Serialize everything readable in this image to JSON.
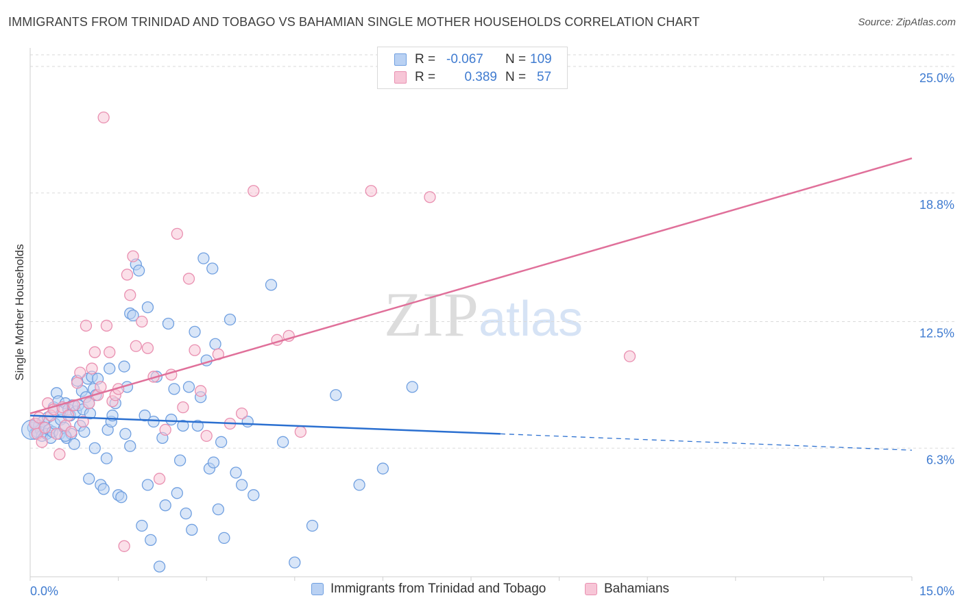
{
  "title": "IMMIGRANTS FROM TRINIDAD AND TOBAGO VS BAHAMIAN SINGLE MOTHER HOUSEHOLDS CORRELATION CHART",
  "source": "Source: ZipAtlas.com",
  "colors": {
    "blue": "#6f9fe0",
    "blue_fill": "#b9d1f3",
    "blue_line": "#2a6fd0",
    "pink": "#e98fb0",
    "pink_fill": "#f7c6d7",
    "pink_line": "#e0709a",
    "axis_label": "#3f7bd0"
  },
  "chart_data": {
    "type": "scatter",
    "title": "IMMIGRANTS FROM TRINIDAD AND TOBAGO VS BAHAMIAN SINGLE MOTHER HOUSEHOLDS CORRELATION CHART",
    "xlabel": "",
    "ylabel": "Single Mother Households",
    "xlim": [
      0,
      15
    ],
    "ylim": [
      0,
      26
    ],
    "x_tick_labels": [
      "0.0%",
      "15.0%"
    ],
    "y_ticks": [
      6.3,
      12.5,
      18.8,
      25.0
    ],
    "y_tick_labels": [
      "6.3%",
      "12.5%",
      "18.8%",
      "25.0%"
    ],
    "grid": "horizontal-dashed",
    "legend_position": "top-center",
    "watermark": "ZIPatlas",
    "legend_stats": [
      {
        "r_label": "R =",
        "r_value": "-0.067",
        "n_label": "N =",
        "n_value": "109"
      },
      {
        "r_label": "R =",
        "r_value": "0.389",
        "n_label": "N =",
        "n_value": "57"
      }
    ],
    "series": [
      {
        "name": "Immigrants from Trinidad and Tobago",
        "color": "#6f9fe0",
        "trend": {
          "x": [
            0,
            8.0,
            15.0
          ],
          "y": [
            7.9,
            7.0,
            6.2
          ],
          "solid_until": 8.0
        },
        "points": [
          [
            0.05,
            7.3
          ],
          [
            0.08,
            7.0
          ],
          [
            0.1,
            7.5
          ],
          [
            0.12,
            7.1
          ],
          [
            0.15,
            7.4
          ],
          [
            0.18,
            7.2
          ],
          [
            0.2,
            6.9
          ],
          [
            0.22,
            7.6
          ],
          [
            0.25,
            7.3
          ],
          [
            0.28,
            7.0
          ],
          [
            0.3,
            7.8
          ],
          [
            0.32,
            7.2
          ],
          [
            0.35,
            6.8
          ],
          [
            0.38,
            7.1
          ],
          [
            0.4,
            8.3
          ],
          [
            0.42,
            7.5
          ],
          [
            0.45,
            9.0
          ],
          [
            0.48,
            8.6
          ],
          [
            0.5,
            7.0
          ],
          [
            0.52,
            7.7
          ],
          [
            0.55,
            8.1
          ],
          [
            0.58,
            7.3
          ],
          [
            0.6,
            8.5
          ],
          [
            0.62,
            6.8
          ],
          [
            0.65,
            8.2
          ],
          [
            0.68,
            7.9
          ],
          [
            0.7,
            7.0
          ],
          [
            0.72,
            8.4
          ],
          [
            0.75,
            6.5
          ],
          [
            0.78,
            8.1
          ],
          [
            0.8,
            9.6
          ],
          [
            0.82,
            8.4
          ],
          [
            0.85,
            7.4
          ],
          [
            0.88,
            9.1
          ],
          [
            0.9,
            8.2
          ],
          [
            0.92,
            7.1
          ],
          [
            0.95,
            8.8
          ],
          [
            0.98,
            9.7
          ],
          [
            1.0,
            8.5
          ],
          [
            1.02,
            8.0
          ],
          [
            1.05,
            9.8
          ],
          [
            1.08,
            9.2
          ],
          [
            1.1,
            6.3
          ],
          [
            1.12,
            8.9
          ],
          [
            1.15,
            9.7
          ],
          [
            1.2,
            4.5
          ],
          [
            1.25,
            4.3
          ],
          [
            1.3,
            5.8
          ],
          [
            1.32,
            7.2
          ],
          [
            1.35,
            10.2
          ],
          [
            1.38,
            7.6
          ],
          [
            1.4,
            7.9
          ],
          [
            1.45,
            8.5
          ],
          [
            1.5,
            4.0
          ],
          [
            1.55,
            3.9
          ],
          [
            1.6,
            10.3
          ],
          [
            1.62,
            7.0
          ],
          [
            1.65,
            9.3
          ],
          [
            1.7,
            12.9
          ],
          [
            1.75,
            12.8
          ],
          [
            1.8,
            15.3
          ],
          [
            1.85,
            15.0
          ],
          [
            1.9,
            2.5
          ],
          [
            1.95,
            7.9
          ],
          [
            2.0,
            4.5
          ],
          [
            2.05,
            1.8
          ],
          [
            2.1,
            7.6
          ],
          [
            2.15,
            9.8
          ],
          [
            2.2,
            0.5
          ],
          [
            2.25,
            6.8
          ],
          [
            2.3,
            3.5
          ],
          [
            2.35,
            12.4
          ],
          [
            2.4,
            7.7
          ],
          [
            2.45,
            9.2
          ],
          [
            2.5,
            4.1
          ],
          [
            2.55,
            5.7
          ],
          [
            2.6,
            7.4
          ],
          [
            2.65,
            3.1
          ],
          [
            2.7,
            9.3
          ],
          [
            2.75,
            2.3
          ],
          [
            2.8,
            12.0
          ],
          [
            2.85,
            7.4
          ],
          [
            2.9,
            8.8
          ],
          [
            2.95,
            15.6
          ],
          [
            3.0,
            10.6
          ],
          [
            3.05,
            5.3
          ],
          [
            3.1,
            15.1
          ],
          [
            3.12,
            5.6
          ],
          [
            3.15,
            11.4
          ],
          [
            3.2,
            3.3
          ],
          [
            3.25,
            6.6
          ],
          [
            3.3,
            1.9
          ],
          [
            3.4,
            12.6
          ],
          [
            3.5,
            5.1
          ],
          [
            3.6,
            4.5
          ],
          [
            3.7,
            7.6
          ],
          [
            3.8,
            4.0
          ],
          [
            4.1,
            14.3
          ],
          [
            4.3,
            6.6
          ],
          [
            4.5,
            0.7
          ],
          [
            4.8,
            2.5
          ],
          [
            5.2,
            8.9
          ],
          [
            5.6,
            4.5
          ],
          [
            6.0,
            5.3
          ],
          [
            6.5,
            9.3
          ],
          [
            2.0,
            13.2
          ],
          [
            1.7,
            6.4
          ],
          [
            0.6,
            6.9
          ],
          [
            1.0,
            4.8
          ]
        ]
      },
      {
        "name": "Bahamians",
        "color": "#e98fb0",
        "trend": {
          "x": [
            0,
            15.0
          ],
          "y": [
            8.0,
            20.5
          ]
        },
        "points": [
          [
            0.08,
            7.5
          ],
          [
            0.12,
            7.0
          ],
          [
            0.15,
            7.8
          ],
          [
            0.2,
            6.6
          ],
          [
            0.25,
            7.3
          ],
          [
            0.3,
            8.5
          ],
          [
            0.35,
            7.9
          ],
          [
            0.4,
            8.2
          ],
          [
            0.45,
            7.0
          ],
          [
            0.5,
            6.0
          ],
          [
            0.55,
            8.3
          ],
          [
            0.6,
            7.4
          ],
          [
            0.65,
            7.9
          ],
          [
            0.7,
            7.1
          ],
          [
            0.75,
            8.4
          ],
          [
            0.8,
            9.5
          ],
          [
            0.85,
            10.0
          ],
          [
            0.9,
            7.6
          ],
          [
            0.95,
            12.3
          ],
          [
            1.0,
            8.5
          ],
          [
            1.05,
            10.2
          ],
          [
            1.1,
            11.0
          ],
          [
            1.15,
            8.9
          ],
          [
            1.2,
            9.3
          ],
          [
            1.25,
            22.5
          ],
          [
            1.3,
            12.3
          ],
          [
            1.35,
            11.0
          ],
          [
            1.4,
            8.6
          ],
          [
            1.45,
            8.9
          ],
          [
            1.5,
            9.2
          ],
          [
            1.6,
            1.5
          ],
          [
            1.65,
            14.8
          ],
          [
            1.7,
            13.8
          ],
          [
            1.75,
            15.7
          ],
          [
            1.8,
            11.3
          ],
          [
            1.9,
            12.5
          ],
          [
            2.0,
            11.2
          ],
          [
            2.1,
            9.8
          ],
          [
            2.2,
            4.8
          ],
          [
            2.3,
            7.2
          ],
          [
            2.4,
            9.9
          ],
          [
            2.5,
            16.8
          ],
          [
            2.6,
            8.3
          ],
          [
            2.7,
            14.6
          ],
          [
            2.8,
            11.1
          ],
          [
            2.9,
            9.1
          ],
          [
            3.0,
            6.9
          ],
          [
            3.2,
            10.9
          ],
          [
            3.4,
            7.5
          ],
          [
            3.6,
            8.0
          ],
          [
            3.8,
            18.9
          ],
          [
            4.2,
            11.6
          ],
          [
            4.4,
            11.8
          ],
          [
            5.8,
            18.9
          ],
          [
            6.8,
            18.6
          ],
          [
            10.2,
            10.8
          ],
          [
            4.6,
            7.1
          ]
        ]
      }
    ]
  }
}
